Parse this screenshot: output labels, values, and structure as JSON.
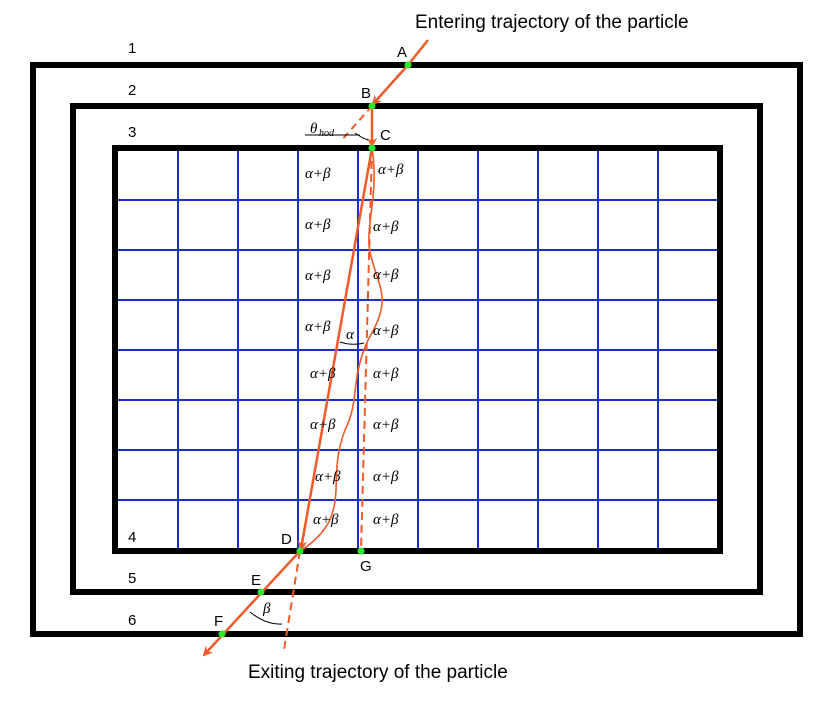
{
  "labels": {
    "entering": "Entering trajectory of the particle",
    "exiting": "Exiting trajectory of the particle"
  },
  "layers": [
    "1",
    "2",
    "3",
    "4",
    "5",
    "6"
  ],
  "points": [
    "A",
    "B",
    "C",
    "D",
    "E",
    "F",
    "G"
  ],
  "cells_left": [
    "α+β",
    "α+β",
    "α+β",
    "α+β",
    "α+β",
    "α+β",
    "α+β",
    "α+β"
  ],
  "cells_right": [
    "α+β",
    "α+β",
    "α+β",
    "α+β",
    "α+β",
    "α+β",
    "α+β",
    "α+β"
  ],
  "angles": {
    "theta": "θ",
    "theta_sub": "hod",
    "alpha": "α",
    "beta": "β"
  }
}
